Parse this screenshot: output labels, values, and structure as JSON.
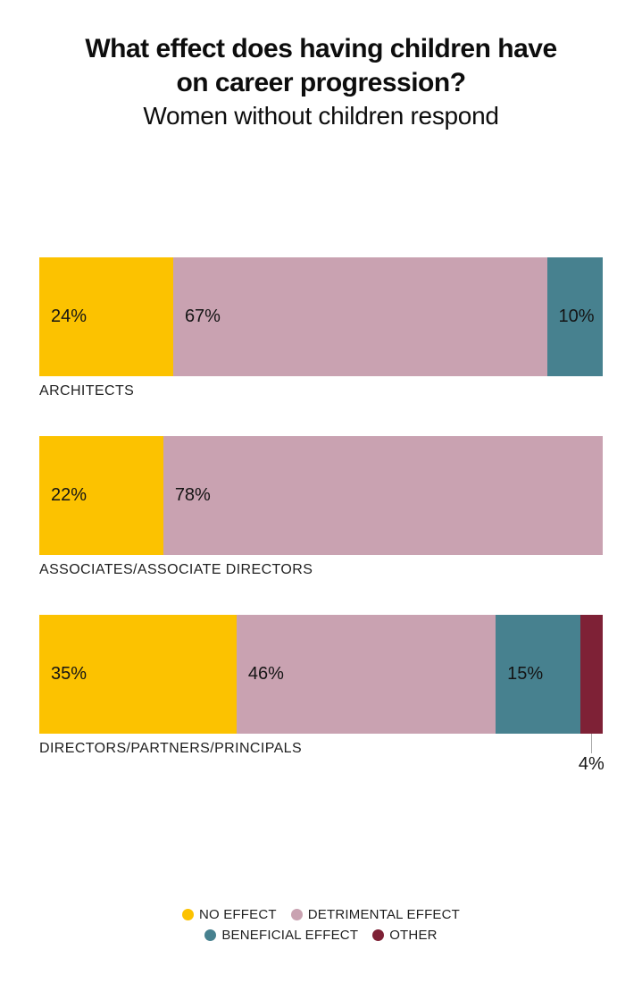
{
  "title": {
    "line1": "What effect does having children have",
    "line2": "on career progression?",
    "subtitle": "Women without children respond"
  },
  "chart_data": {
    "type": "bar",
    "orientation": "horizontal-stacked",
    "title": "What effect does having children have on career progression?",
    "subtitle": "Women without children respond",
    "categories": [
      "ARCHITECTS",
      "ASSOCIATES/ASSOCIATE DIRECTORS",
      "DIRECTORS/PARTNERS/PRINCIPALS"
    ],
    "series": [
      {
        "name": "NO EFFECT",
        "color": "#FCC200",
        "values": [
          24,
          22,
          35
        ]
      },
      {
        "name": "DETRIMENTAL EFFECT",
        "color": "#C9A2B1",
        "values": [
          67,
          78,
          46
        ]
      },
      {
        "name": "BENEFICIAL EFFECT",
        "color": "#47818F",
        "values": [
          10,
          0,
          15
        ]
      },
      {
        "name": "OTHER",
        "color": "#7E2136",
        "values": [
          0,
          0,
          4
        ]
      }
    ],
    "value_suffix": "%",
    "xlim": [
      0,
      100
    ],
    "grid": false,
    "legend_position": "bottom",
    "label_placement_overrides": [
      {
        "category_index": 2,
        "series_index": 3,
        "placement": "below"
      }
    ]
  },
  "legend": {
    "rows": [
      [
        {
          "label": "NO EFFECT",
          "color": "#FCC200"
        },
        {
          "label": "DETRIMENTAL EFFECT",
          "color": "#C9A2B1"
        }
      ],
      [
        {
          "label": "BENEFICIAL EFFECT",
          "color": "#47818F"
        },
        {
          "label": "OTHER",
          "color": "#7E2136"
        }
      ]
    ]
  }
}
